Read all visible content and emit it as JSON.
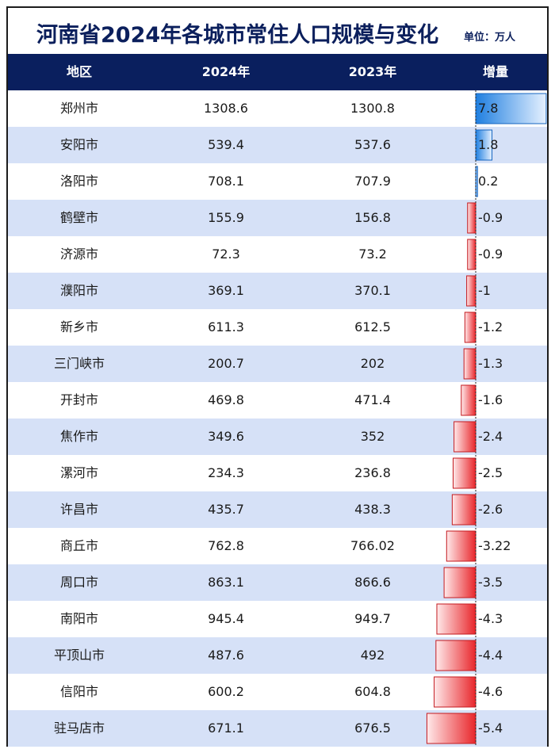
{
  "title": "河南省2024年各城市常住人口规模与变化",
  "unit": "单位：万人",
  "header": {
    "region": "地区",
    "y2024": "2024年",
    "y2023": "2023年",
    "delta": "增量"
  },
  "colors": {
    "header_bg": "#0a1f5e",
    "title": "#0b1f5c",
    "alt_row": "#d6e1f7",
    "positive_bar": "#1f7fe0",
    "negative_bar": "#e8262b"
  },
  "chart_data": {
    "type": "table",
    "columns": [
      "地区",
      "2024年",
      "2023年",
      "增量"
    ],
    "rows": [
      {
        "region": "郑州市",
        "y2024": "1308.6",
        "y2023": "1300.8",
        "delta": "7.8",
        "delta_value": 7.8
      },
      {
        "region": "安阳市",
        "y2024": "539.4",
        "y2023": "537.6",
        "delta": "1.8",
        "delta_value": 1.8
      },
      {
        "region": "洛阳市",
        "y2024": "708.1",
        "y2023": "707.9",
        "delta": "0.2",
        "delta_value": 0.2
      },
      {
        "region": "鹤壁市",
        "y2024": "155.9",
        "y2023": "156.8",
        "delta": "-0.9",
        "delta_value": -0.9
      },
      {
        "region": "济源市",
        "y2024": "72.3",
        "y2023": "73.2",
        "delta": "-0.9",
        "delta_value": -0.9
      },
      {
        "region": "濮阳市",
        "y2024": "369.1",
        "y2023": "370.1",
        "delta": "-1",
        "delta_value": -1
      },
      {
        "region": "新乡市",
        "y2024": "611.3",
        "y2023": "612.5",
        "delta": "-1.2",
        "delta_value": -1.2
      },
      {
        "region": "三门峡市",
        "y2024": "200.7",
        "y2023": "202",
        "delta": "-1.3",
        "delta_value": -1.3
      },
      {
        "region": "开封市",
        "y2024": "469.8",
        "y2023": "471.4",
        "delta": "-1.6",
        "delta_value": -1.6
      },
      {
        "region": "焦作市",
        "y2024": "349.6",
        "y2023": "352",
        "delta": "-2.4",
        "delta_value": -2.4
      },
      {
        "region": "漯河市",
        "y2024": "234.3",
        "y2023": "236.8",
        "delta": "-2.5",
        "delta_value": -2.5
      },
      {
        "region": "许昌市",
        "y2024": "435.7",
        "y2023": "438.3",
        "delta": "-2.6",
        "delta_value": -2.6
      },
      {
        "region": "商丘市",
        "y2024": "762.8",
        "y2023": "766.02",
        "delta": "-3.22",
        "delta_value": -3.22
      },
      {
        "region": "周口市",
        "y2024": "863.1",
        "y2023": "866.6",
        "delta": "-3.5",
        "delta_value": -3.5
      },
      {
        "region": "南阳市",
        "y2024": "945.4",
        "y2023": "949.7",
        "delta": "-4.3",
        "delta_value": -4.3
      },
      {
        "region": "平顶山市",
        "y2024": "487.6",
        "y2023": "492",
        "delta": "-4.4",
        "delta_value": -4.4
      },
      {
        "region": "信阳市",
        "y2024": "600.2",
        "y2023": "604.8",
        "delta": "-4.6",
        "delta_value": -4.6
      },
      {
        "region": "驻马店市",
        "y2024": "671.1",
        "y2023": "676.5",
        "delta": "-5.4",
        "delta_value": -5.4
      }
    ]
  }
}
